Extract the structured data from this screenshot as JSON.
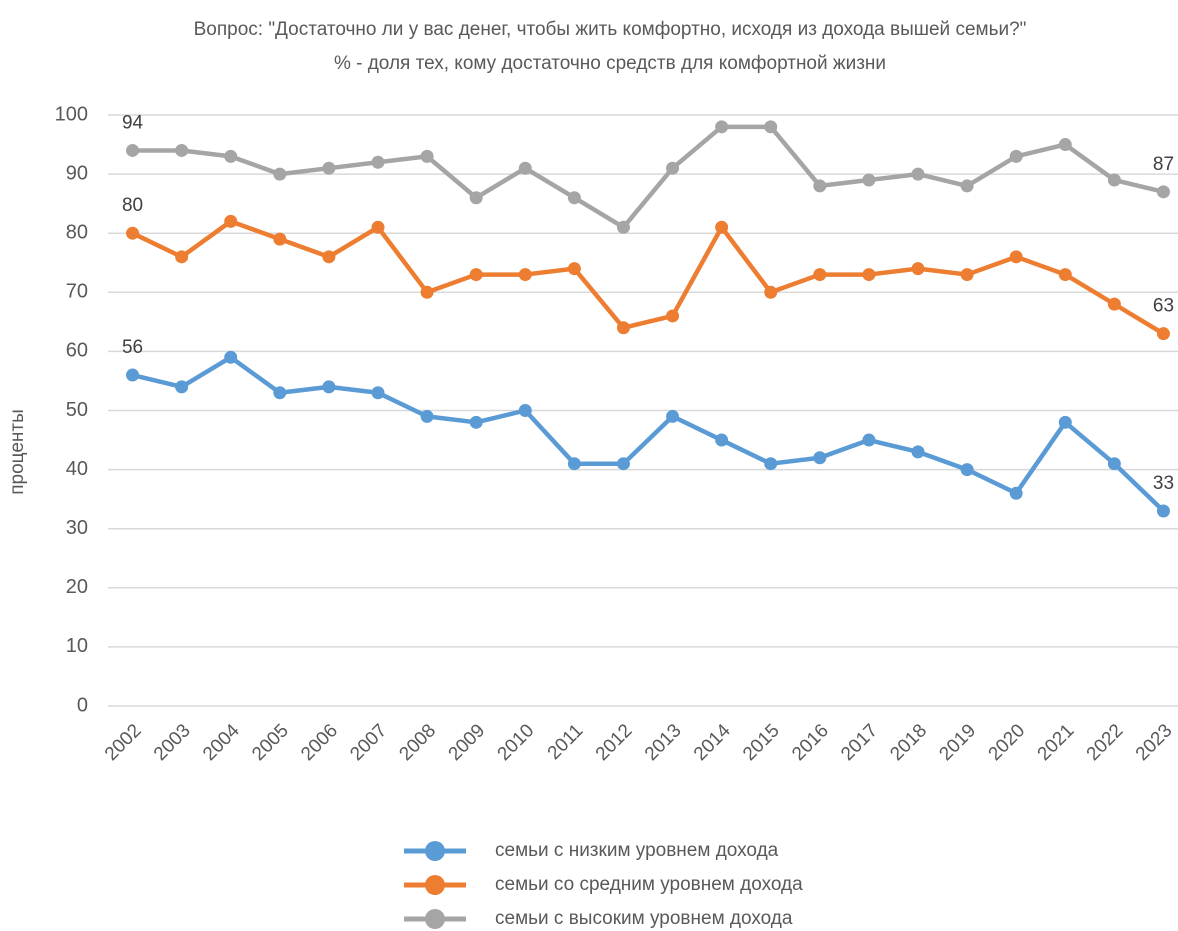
{
  "chart_data": {
    "type": "line",
    "title": "Вопрос: \"Достаточно ли у вас денег, чтобы жить комфортно, исходя из дохода вышей семьи?\"",
    "subtitle": "% - доля тех, кому достаточно средств для комфортной жизни",
    "y_label": "проценты",
    "categories": [
      "2002",
      "2003",
      "2004",
      "2005",
      "2006",
      "2007",
      "2008",
      "2009",
      "2010",
      "2011",
      "2012",
      "2013",
      "2014",
      "2015",
      "2016",
      "2017",
      "2018",
      "2019",
      "2020",
      "2021",
      "2022",
      "2023"
    ],
    "series": [
      {
        "name": "семьи с низким уровнем дохода",
        "color": "#5b9bd5",
        "values": [
          56,
          54,
          59,
          53,
          54,
          53,
          49,
          48,
          50,
          41,
          41,
          49,
          45,
          41,
          42,
          45,
          43,
          40,
          36,
          48,
          41,
          33
        ]
      },
      {
        "name": "семьи со средним уровнем дохода",
        "color": "#ed7d31",
        "values": [
          80,
          76,
          82,
          79,
          76,
          81,
          70,
          73,
          73,
          74,
          64,
          66,
          81,
          70,
          73,
          73,
          74,
          73,
          76,
          73,
          68,
          63
        ]
      },
      {
        "name": "семьи с высоким уровнем дохода",
        "color": "#a5a5a5",
        "values": [
          94,
          94,
          93,
          90,
          91,
          92,
          93,
          86,
          91,
          86,
          81,
          91,
          98,
          98,
          88,
          89,
          90,
          88,
          93,
          95,
          89,
          87
        ]
      }
    ],
    "data_labels": "ends",
    "ylim": [
      0,
      100
    ],
    "yticks": [
      0,
      10,
      20,
      30,
      40,
      50,
      60,
      70,
      80,
      90,
      100
    ],
    "grid": true,
    "legend": "bottom"
  }
}
